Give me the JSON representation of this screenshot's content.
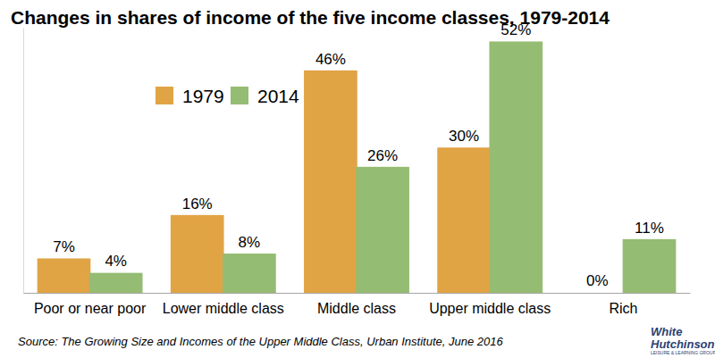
{
  "chart_data": {
    "type": "bar",
    "title": "Changes in shares of income of the five income classes, 1979-2014",
    "source": "Source: The Growing Size and Incomes of the Upper Middle Class, Urban Institute, June 2016",
    "annotations": [
      "White",
      "Hutchinson",
      "LEISURE & LEARNING GROUP"
    ],
    "categories": [
      "Poor or near poor",
      "Lower middle class",
      "Middle class",
      "Upper middle class",
      "Rich"
    ],
    "series": [
      {
        "name": "1979",
        "color": "#e1a445",
        "values": [
          7,
          16,
          46,
          30,
          0
        ],
        "value_labels": [
          "7%",
          "16%",
          "46%",
          "30%",
          "0%"
        ]
      },
      {
        "name": "2014",
        "color": "#95bc73",
        "values": [
          4,
          8,
          26,
          52,
          11
        ],
        "value_labels": [
          "4%",
          "8%",
          "26%",
          "52%",
          "11%"
        ]
      }
    ],
    "ylim": [
      0,
      55
    ],
    "data_labels": true,
    "tick_labels": "x",
    "legend": "top-left",
    "grid": false
  }
}
